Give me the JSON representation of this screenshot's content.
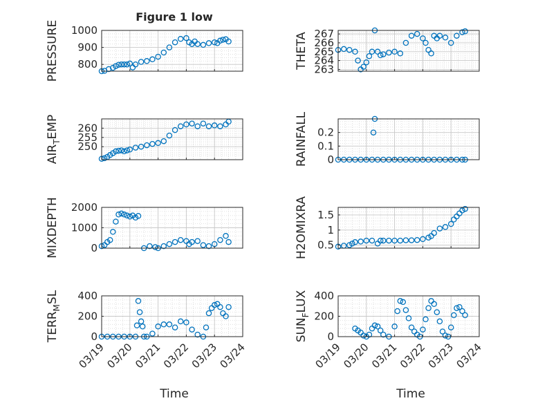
{
  "figure": {
    "title": "Figure 1 low",
    "xlabel": "Time",
    "xticks": [
      "03/19",
      "03/20",
      "03/21",
      "03/22",
      "03/23",
      "03/24"
    ],
    "marker_color": "#0072BD"
  },
  "chart_data": [
    {
      "type": "scatter",
      "id": "pressure",
      "ylabel": "PRESSURE",
      "xlim": [
        0,
        5
      ],
      "ylim": [
        760,
        1000
      ],
      "yticks": [
        800,
        900,
        1000
      ],
      "ytick_labels": [
        "800",
        "900",
        "1000"
      ],
      "series": [
        {
          "x": [
            0.0,
            0.1,
            0.25,
            0.4,
            0.5,
            0.6,
            0.7,
            0.8,
            0.9,
            1.0,
            1.1,
            1.2,
            1.4,
            1.6,
            1.8,
            2.0,
            2.2,
            2.4,
            2.6,
            2.8,
            3.0,
            3.1,
            3.2,
            3.3,
            3.4,
            3.6,
            3.8,
            4.0,
            4.1,
            4.2,
            4.3,
            4.4,
            4.5
          ],
          "y": [
            760,
            762,
            772,
            780,
            790,
            798,
            800,
            800,
            800,
            805,
            782,
            800,
            815,
            820,
            830,
            845,
            870,
            900,
            930,
            950,
            955,
            930,
            920,
            935,
            920,
            915,
            925,
            930,
            925,
            940,
            945,
            948,
            935
          ]
        }
      ]
    },
    {
      "type": "scatter",
      "id": "theta",
      "ylabel": "THETA",
      "xlim": [
        0,
        5
      ],
      "ylim": [
        262.8,
        267.4
      ],
      "yticks": [
        263,
        264,
        265,
        266,
        267
      ],
      "ytick_labels": [
        "263",
        "264",
        "265",
        "266",
        "267"
      ],
      "series": [
        {
          "x": [
            0.0,
            0.2,
            0.4,
            0.6,
            0.7,
            0.8,
            0.9,
            1.0,
            1.1,
            1.2,
            1.3,
            1.4,
            1.5,
            1.6,
            1.8,
            2.0,
            2.2,
            2.4,
            2.6,
            2.8,
            3.0,
            3.1,
            3.2,
            3.3,
            3.4,
            3.5,
            3.6,
            3.8,
            4.0,
            4.2,
            4.4,
            4.5
          ],
          "y": [
            265.2,
            265.3,
            265.2,
            265.0,
            264.0,
            263.0,
            263.3,
            263.8,
            264.5,
            265.0,
            267.4,
            265.0,
            264.6,
            264.7,
            264.9,
            265.0,
            264.8,
            266.0,
            266.8,
            267.0,
            266.5,
            266.0,
            265.2,
            264.8,
            266.8,
            266.5,
            266.8,
            266.6,
            266.0,
            266.8,
            267.2,
            267.3
          ]
        }
      ]
    },
    {
      "type": "scatter",
      "id": "air_temp",
      "ylabel": "AIR_TEMP",
      "xlim": [
        0,
        5
      ],
      "ylim": [
        243,
        265
      ],
      "yticks": [
        250,
        255,
        260
      ],
      "ytick_labels": [
        "250",
        "255",
        "260"
      ],
      "series": [
        {
          "x": [
            0.0,
            0.1,
            0.2,
            0.3,
            0.4,
            0.5,
            0.6,
            0.7,
            0.8,
            0.9,
            1.0,
            1.2,
            1.4,
            1.6,
            1.8,
            2.0,
            2.2,
            2.4,
            2.6,
            2.8,
            3.0,
            3.2,
            3.4,
            3.6,
            3.8,
            4.0,
            4.2,
            4.4,
            4.5
          ],
          "y": [
            243.5,
            243.8,
            244.5,
            245.5,
            246.5,
            247.5,
            247.8,
            248.0,
            247.5,
            248.0,
            248.5,
            249.5,
            250.0,
            250.8,
            251.5,
            252.0,
            253.0,
            256.0,
            259.0,
            261.0,
            262.0,
            262.5,
            261.0,
            262.5,
            261.0,
            261.5,
            261.0,
            262.0,
            263.5
          ]
        }
      ]
    },
    {
      "type": "scatter",
      "id": "rainfall",
      "ylabel": "RAINFALL",
      "xlim": [
        0,
        5
      ],
      "ylim": [
        0,
        0.3
      ],
      "yticks": [
        0,
        0.1,
        0.2
      ],
      "ytick_labels": [
        "0",
        "0.1",
        "0.2"
      ],
      "series": [
        {
          "x": [
            0.0,
            0.2,
            0.4,
            0.6,
            0.8,
            1.0,
            1.2,
            1.25,
            1.3,
            1.4,
            1.6,
            1.8,
            2.0,
            2.2,
            2.4,
            2.6,
            2.8,
            3.0,
            3.2,
            3.4,
            3.6,
            3.8,
            4.0,
            4.2,
            4.4,
            4.5
          ],
          "y": [
            0,
            0,
            0,
            0,
            0,
            0,
            0,
            0.2,
            0.3,
            0,
            0,
            0,
            0,
            0,
            0,
            0,
            0,
            0,
            0,
            0,
            0,
            0,
            0,
            0,
            0,
            0
          ]
        }
      ]
    },
    {
      "type": "scatter",
      "id": "mixdepth",
      "ylabel": "MIXDEPTH",
      "xlim": [
        0,
        5
      ],
      "ylim": [
        0,
        2000
      ],
      "yticks": [
        0,
        1000,
        2000
      ],
      "ytick_labels": [
        "0",
        "1000",
        "2000"
      ],
      "series": [
        {
          "x": [
            0.0,
            0.1,
            0.2,
            0.3,
            0.4,
            0.5,
            0.6,
            0.7,
            0.8,
            0.9,
            1.0,
            1.1,
            1.2,
            1.3,
            1.5,
            1.7,
            1.9,
            2.0,
            2.2,
            2.4,
            2.6,
            2.8,
            3.0,
            3.1,
            3.2,
            3.4,
            3.6,
            3.8,
            4.0,
            4.2,
            4.4,
            4.5
          ],
          "y": [
            100,
            150,
            300,
            400,
            800,
            1300,
            1650,
            1700,
            1650,
            1600,
            1550,
            1600,
            1500,
            1580,
            0,
            100,
            50,
            0,
            100,
            200,
            300,
            400,
            350,
            200,
            300,
            350,
            150,
            100,
            200,
            400,
            600,
            300
          ]
        }
      ]
    },
    {
      "type": "scatter",
      "id": "h2omixra",
      "ylabel": "H2OMIXRA",
      "xlim": [
        0,
        5
      ],
      "ylim": [
        0.4,
        1.75
      ],
      "yticks": [
        0.5,
        1,
        1.5
      ],
      "ytick_labels": [
        "0.5",
        "1",
        "1.5"
      ],
      "series": [
        {
          "x": [
            0.0,
            0.2,
            0.4,
            0.5,
            0.6,
            0.8,
            1.0,
            1.2,
            1.4,
            1.5,
            1.6,
            1.8,
            2.0,
            2.2,
            2.4,
            2.6,
            2.8,
            3.0,
            3.2,
            3.3,
            3.4,
            3.6,
            3.8,
            4.0,
            4.1,
            4.2,
            4.3,
            4.4,
            4.5
          ],
          "y": [
            0.45,
            0.48,
            0.5,
            0.55,
            0.6,
            0.62,
            0.65,
            0.65,
            0.55,
            0.65,
            0.65,
            0.65,
            0.65,
            0.65,
            0.66,
            0.66,
            0.67,
            0.7,
            0.75,
            0.8,
            0.9,
            1.05,
            1.1,
            1.2,
            1.35,
            1.45,
            1.55,
            1.65,
            1.7
          ]
        }
      ]
    },
    {
      "type": "scatter",
      "id": "terr_msl",
      "ylabel": "TERR_MSL",
      "xlim": [
        0,
        5
      ],
      "ylim": [
        0,
        400
      ],
      "yticks": [
        0,
        200,
        400
      ],
      "ytick_labels": [
        "0",
        "200",
        "400"
      ],
      "series": [
        {
          "x": [
            0.0,
            0.2,
            0.4,
            0.6,
            0.8,
            1.0,
            1.2,
            1.25,
            1.3,
            1.35,
            1.4,
            1.45,
            1.5,
            1.6,
            1.8,
            2.0,
            2.2,
            2.4,
            2.6,
            2.8,
            3.0,
            3.2,
            3.4,
            3.6,
            3.7,
            3.8,
            3.9,
            4.0,
            4.1,
            4.2,
            4.3,
            4.4,
            4.5
          ],
          "y": [
            0,
            0,
            0,
            0,
            0,
            0,
            0,
            110,
            350,
            240,
            150,
            100,
            0,
            0,
            30,
            100,
            120,
            120,
            90,
            150,
            140,
            70,
            20,
            0,
            90,
            230,
            280,
            310,
            320,
            290,
            230,
            200,
            290
          ]
        }
      ]
    },
    {
      "type": "scatter",
      "id": "sun_flux",
      "ylabel": "SUN_FLUX",
      "xlim": [
        0,
        5
      ],
      "ylim": [
        0,
        400
      ],
      "yticks": [
        0,
        200,
        400
      ],
      "ytick_labels": [
        "0",
        "200",
        "400"
      ],
      "series": [
        {
          "x": [
            0.6,
            0.7,
            0.8,
            0.9,
            1.0,
            1.1,
            1.2,
            1.3,
            1.4,
            1.5,
            1.6,
            1.8,
            2.0,
            2.1,
            2.2,
            2.3,
            2.4,
            2.5,
            2.6,
            2.7,
            2.8,
            2.9,
            3.0,
            3.1,
            3.2,
            3.3,
            3.4,
            3.5,
            3.6,
            3.7,
            3.8,
            3.9,
            4.0,
            4.1,
            4.2,
            4.3,
            4.4,
            4.5
          ],
          "y": [
            80,
            60,
            40,
            10,
            0,
            20,
            80,
            110,
            100,
            60,
            20,
            0,
            100,
            250,
            350,
            340,
            260,
            180,
            90,
            50,
            20,
            0,
            70,
            170,
            280,
            350,
            320,
            240,
            150,
            50,
            10,
            0,
            90,
            210,
            280,
            290,
            250,
            210
          ]
        }
      ]
    }
  ]
}
